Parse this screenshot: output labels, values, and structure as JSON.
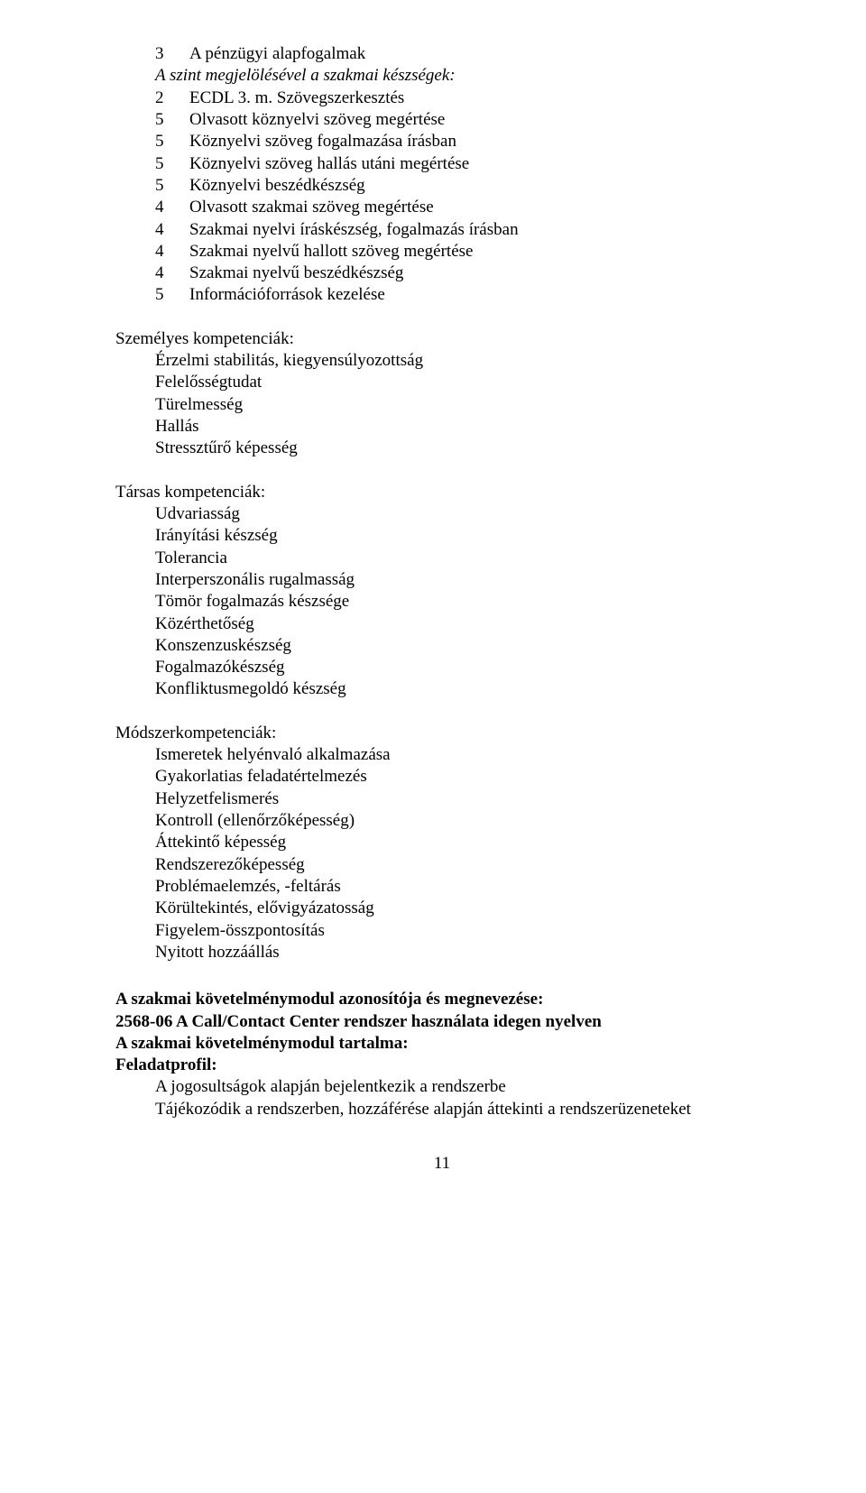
{
  "top": {
    "items": [
      {
        "n": "3",
        "t": "A pénzügyi alapfogalmak"
      }
    ],
    "subhead_italic": "A szint megjelölésével a szakmai készségek:",
    "skills": [
      {
        "n": "2",
        "t": "ECDL 3. m. Szövegszerkesztés"
      },
      {
        "n": "5",
        "t": "Olvasott köznyelvi szöveg megértése"
      },
      {
        "n": "5",
        "t": "Köznyelvi szöveg fogalmazása írásban"
      },
      {
        "n": "5",
        "t": "Köznyelvi szöveg hallás utáni megértése"
      },
      {
        "n": "5",
        "t": "Köznyelvi beszédkészség"
      },
      {
        "n": "4",
        "t": "Olvasott szakmai szöveg megértése"
      },
      {
        "n": "4",
        "t": "Szakmai nyelvi íráskészség, fogalmazás írásban"
      },
      {
        "n": "4",
        "t": "Szakmai nyelvű hallott szöveg megértése"
      },
      {
        "n": "4",
        "t": "Szakmai nyelvű beszédkészség"
      },
      {
        "n": "5",
        "t": "Információforrások kezelése"
      }
    ]
  },
  "personal": {
    "title": "Személyes kompetenciák:",
    "items": [
      "Érzelmi stabilitás, kiegyensúlyozottság",
      "Felelősségtudat",
      "Türelmesség",
      "Hallás",
      "Stressztűrő képesség"
    ]
  },
  "social": {
    "title": "Társas kompetenciák:",
    "items": [
      "Udvariasság",
      "Irányítási készség",
      "Tolerancia",
      "Interperszonális rugalmasság",
      "Tömör fogalmazás készsége",
      "Közérthetőség",
      "Konszenzuskészség",
      "Fogalmazókészség",
      "Konfliktusmegoldó készség"
    ]
  },
  "method": {
    "title": "Módszerkompetenciák:",
    "items": [
      "Ismeretek helyénvaló alkalmazása",
      "Gyakorlatias feladatértelmezés",
      "Helyzetfelismerés",
      "Kontroll (ellenőrzőképesség)",
      "Áttekintő képesség",
      "Rendszerezőképesség",
      "Problémaelemzés, -feltárás",
      "Körültekintés, elővigyázatosság",
      "Figyelem-összpontosítás",
      "Nyitott hozzáállás"
    ]
  },
  "module": {
    "line1": "A szakmai követelménymodul azonosítója és megnevezése:",
    "line2_pre": " 2568-06",
    "line2_suf": "  A Call/Contact Center rendszer használata idegen nyelven",
    "line3": "A szakmai követelménymodul tartalma:",
    "line4": "Feladatprofil:",
    "tasks": [
      "A jogosultságok alapján bejelentkezik a rendszerbe",
      "Tájékozódik a rendszerben, hozzáférése alapján áttekinti a rendszerüzeneteket"
    ]
  },
  "page_number": "11"
}
